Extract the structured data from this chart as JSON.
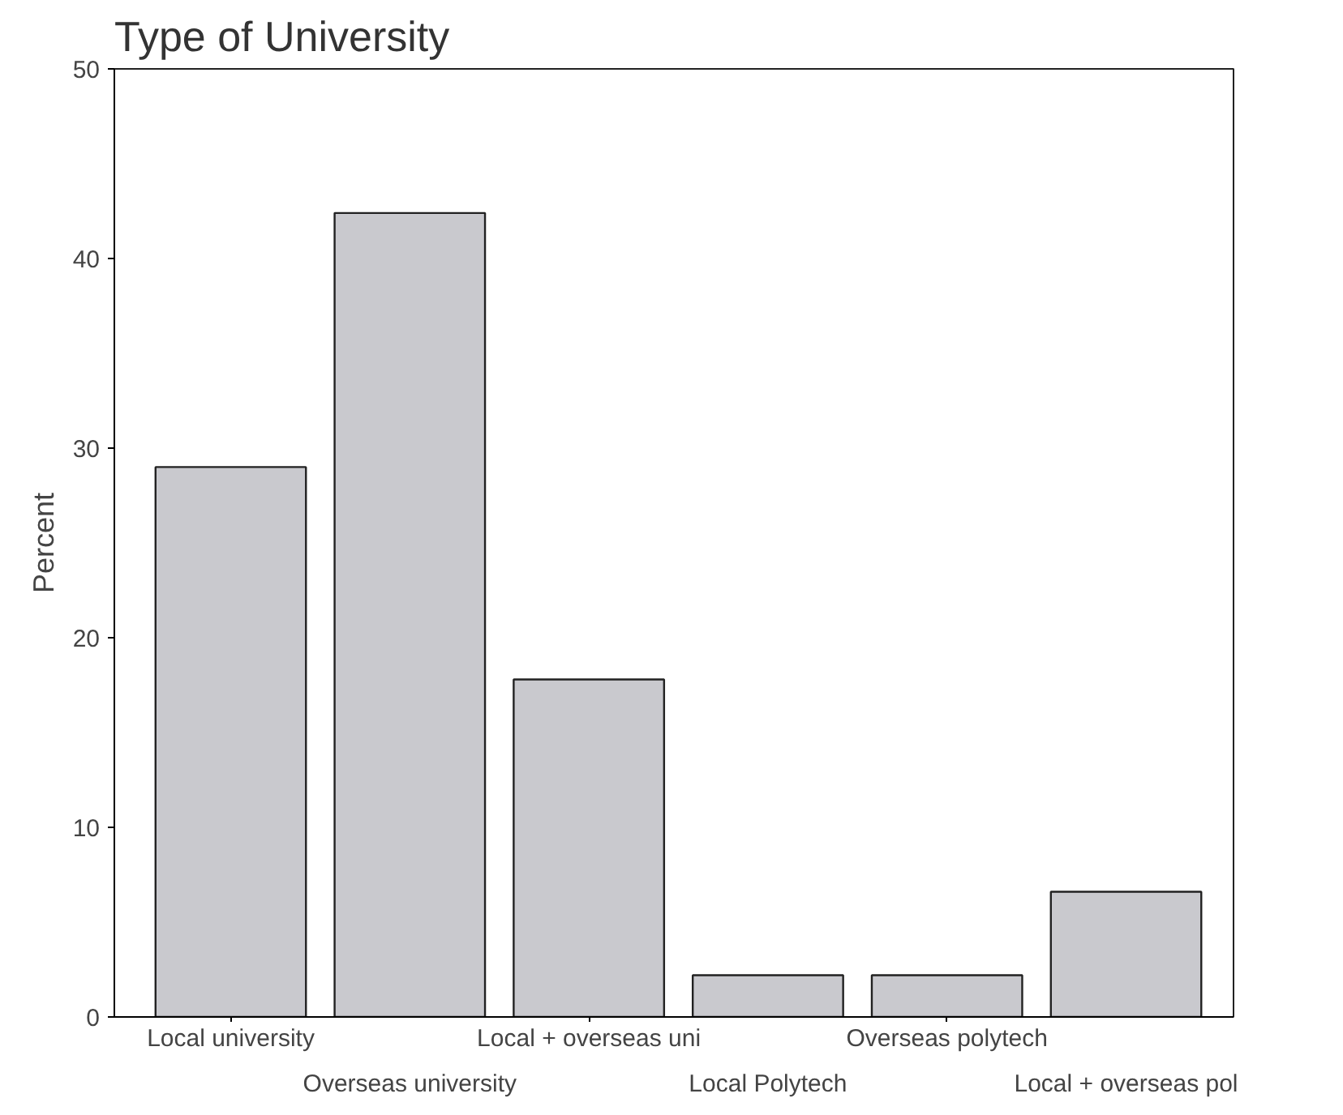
{
  "chart_data": {
    "type": "bar",
    "title": "Type of University",
    "ylabel": "Percent",
    "categories": [
      "Local university",
      "Overseas university",
      "Local + overseas uni",
      "Local Polytech",
      "Overseas polytech",
      "Local + overseas pol"
    ],
    "values": [
      29,
      42.4,
      17.8,
      2.2,
      2.2,
      6.6
    ],
    "color": "#c9c9ce",
    "ylim": [
      0,
      50
    ],
    "yticks": [
      0,
      10,
      20,
      30,
      40,
      50
    ],
    "grid": false
  }
}
